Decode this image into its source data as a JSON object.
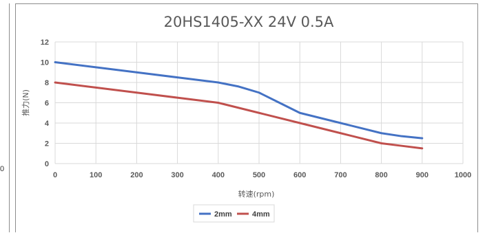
{
  "left_fragment": {
    "text": "0"
  },
  "chart_data": {
    "type": "line",
    "title": "20HS1405-XX  24V  0.5A",
    "xlabel": "转速(rpm)",
    "ylabel": "推力(N)",
    "xlim": [
      0,
      1000
    ],
    "ylim": [
      0,
      12
    ],
    "xticks": [
      0,
      100,
      200,
      300,
      400,
      500,
      600,
      700,
      800,
      900,
      1000
    ],
    "yticks": [
      0,
      2,
      4,
      6,
      8,
      10,
      12
    ],
    "grid": true,
    "legend": "bottom",
    "series": [
      {
        "name": "2mm",
        "color": "#4472c4",
        "x": [
          0,
          100,
          200,
          300,
          400,
          450,
          500,
          550,
          600,
          700,
          800,
          850,
          900
        ],
        "y": [
          10.0,
          9.5,
          9.0,
          8.5,
          8.0,
          7.6,
          7.0,
          6.0,
          5.0,
          4.0,
          3.0,
          2.7,
          2.5
        ]
      },
      {
        "name": "4mm",
        "color": "#c0504d",
        "x": [
          0,
          100,
          200,
          300,
          400,
          450,
          500,
          600,
          700,
          800,
          850,
          900
        ],
        "y": [
          8.0,
          7.5,
          7.0,
          6.5,
          6.0,
          5.5,
          5.0,
          4.0,
          3.0,
          2.0,
          1.75,
          1.5
        ]
      }
    ]
  }
}
